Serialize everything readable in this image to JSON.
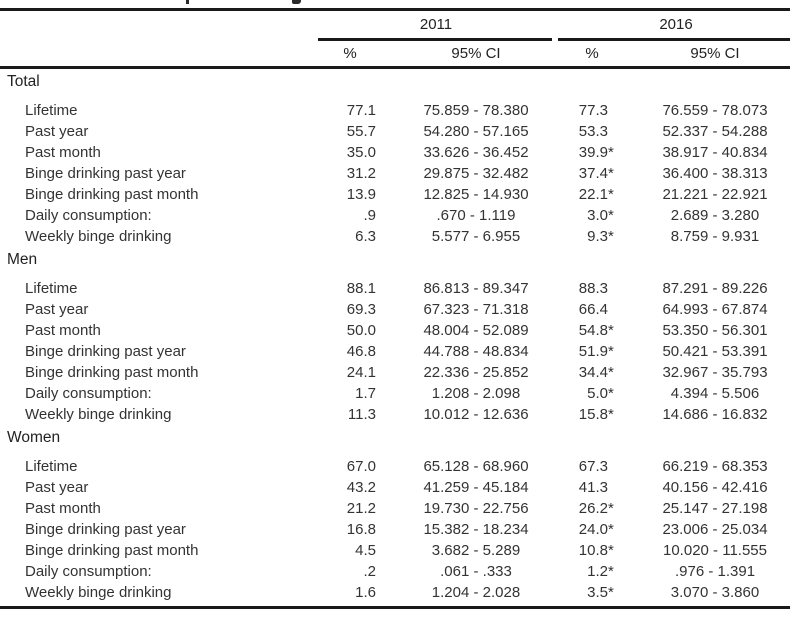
{
  "colors": {
    "background": "#ffffff",
    "text": "#333333",
    "heading_text": "#222222",
    "rule": "#1a1a1a"
  },
  "table": {
    "year_groups": [
      {
        "label": "2011",
        "pct_label": "%",
        "ci_label": "95% CI"
      },
      {
        "label": "2016",
        "pct_label": "%",
        "ci_label": "95% CI"
      }
    ],
    "significance_marker": "*",
    "sections": [
      {
        "title": "Total",
        "rows": [
          {
            "label": "Lifetime",
            "y2011": {
              "pct": "77.1",
              "flag": "",
              "ci": "75.859 - 78.380"
            },
            "y2016": {
              "pct": "77.3",
              "flag": "",
              "ci": "76.559 - 78.073"
            }
          },
          {
            "label": "Past year",
            "y2011": {
              "pct": "55.7",
              "flag": "",
              "ci": "54.280 - 57.165"
            },
            "y2016": {
              "pct": "53.3",
              "flag": "",
              "ci": "52.337 - 54.288"
            }
          },
          {
            "label": "Past month",
            "y2011": {
              "pct": "35.0",
              "flag": "",
              "ci": "33.626 - 36.452"
            },
            "y2016": {
              "pct": "39.9",
              "flag": "*",
              "ci": "38.917 - 40.834"
            }
          },
          {
            "label": "Binge drinking past year",
            "y2011": {
              "pct": "31.2",
              "flag": "",
              "ci": "29.875 - 32.482"
            },
            "y2016": {
              "pct": "37.4",
              "flag": "*",
              "ci": "36.400 - 38.313"
            }
          },
          {
            "label": "Binge drinking past month",
            "y2011": {
              "pct": "13.9",
              "flag": "",
              "ci": "12.825 - 14.930"
            },
            "y2016": {
              "pct": "22.1",
              "flag": "*",
              "ci": "21.221 - 22.921"
            }
          },
          {
            "label": "Daily consumption:",
            "y2011": {
              "pct": ".9",
              "flag": "",
              "ci": ".670 - 1.119"
            },
            "y2016": {
              "pct": "3.0",
              "flag": "*",
              "ci": "2.689 - 3.280"
            }
          },
          {
            "label": "Weekly binge drinking",
            "y2011": {
              "pct": "6.3",
              "flag": "",
              "ci": "5.577 - 6.955"
            },
            "y2016": {
              "pct": "9.3",
              "flag": "*",
              "ci": "8.759 - 9.931"
            }
          }
        ]
      },
      {
        "title": "Men",
        "rows": [
          {
            "label": "Lifetime",
            "y2011": {
              "pct": "88.1",
              "flag": "",
              "ci": "86.813 - 89.347"
            },
            "y2016": {
              "pct": "88.3",
              "flag": "",
              "ci": "87.291 - 89.226"
            }
          },
          {
            "label": "Past year",
            "y2011": {
              "pct": "69.3",
              "flag": "",
              "ci": "67.323 - 71.318"
            },
            "y2016": {
              "pct": "66.4",
              "flag": "",
              "ci": "64.993 - 67.874"
            }
          },
          {
            "label": "Past month",
            "y2011": {
              "pct": "50.0",
              "flag": "",
              "ci": "48.004 - 52.089"
            },
            "y2016": {
              "pct": "54.8",
              "flag": "*",
              "ci": "53.350 - 56.301"
            }
          },
          {
            "label": "Binge drinking past year",
            "y2011": {
              "pct": "46.8",
              "flag": "",
              "ci": "44.788 - 48.834"
            },
            "y2016": {
              "pct": "51.9",
              "flag": "*",
              "ci": "50.421 - 53.391"
            }
          },
          {
            "label": "Binge drinking past month",
            "y2011": {
              "pct": "24.1",
              "flag": "",
              "ci": "22.336 - 25.852"
            },
            "y2016": {
              "pct": "34.4",
              "flag": "*",
              "ci": "32.967 - 35.793"
            }
          },
          {
            "label": "Daily consumption:",
            "y2011": {
              "pct": "1.7",
              "flag": "",
              "ci": "1.208 - 2.098"
            },
            "y2016": {
              "pct": "5.0",
              "flag": "*",
              "ci": "4.394 - 5.506"
            }
          },
          {
            "label": "Weekly binge drinking",
            "y2011": {
              "pct": "11.3",
              "flag": "",
              "ci": "10.012 - 12.636"
            },
            "y2016": {
              "pct": "15.8",
              "flag": "*",
              "ci": "14.686 - 16.832"
            }
          }
        ]
      },
      {
        "title": "Women",
        "rows": [
          {
            "label": "Lifetime",
            "y2011": {
              "pct": "67.0",
              "flag": "",
              "ci": "65.128 - 68.960"
            },
            "y2016": {
              "pct": "67.3",
              "flag": "",
              "ci": "66.219 - 68.353"
            }
          },
          {
            "label": "Past year",
            "y2011": {
              "pct": "43.2",
              "flag": "",
              "ci": "41.259 - 45.184"
            },
            "y2016": {
              "pct": "41.3",
              "flag": "",
              "ci": "40.156 - 42.416"
            }
          },
          {
            "label": "Past month",
            "y2011": {
              "pct": "21.2",
              "flag": "",
              "ci": "19.730 - 22.756"
            },
            "y2016": {
              "pct": "26.2",
              "flag": "*",
              "ci": "25.147 - 27.198"
            }
          },
          {
            "label": "Binge drinking past year",
            "y2011": {
              "pct": "16.8",
              "flag": "",
              "ci": "15.382 - 18.234"
            },
            "y2016": {
              "pct": "24.0",
              "flag": "*",
              "ci": "23.006 - 25.034"
            }
          },
          {
            "label": "Binge drinking past month",
            "y2011": {
              "pct": "4.5",
              "flag": "",
              "ci": "3.682 - 5.289"
            },
            "y2016": {
              "pct": "10.8",
              "flag": "*",
              "ci": "10.020 - 11.555"
            }
          },
          {
            "label": "Daily consumption:",
            "y2011": {
              "pct": ".2",
              "flag": "",
              "ci": ".061 - .333"
            },
            "y2016": {
              "pct": "1.2",
              "flag": "*",
              "ci": ".976 - 1.391"
            }
          },
          {
            "label": "Weekly binge drinking",
            "y2011": {
              "pct": "1.6",
              "flag": "",
              "ci": "1.204 - 2.028"
            },
            "y2016": {
              "pct": "3.5",
              "flag": "*",
              "ci": "3.070 - 3.860"
            }
          }
        ]
      }
    ]
  }
}
